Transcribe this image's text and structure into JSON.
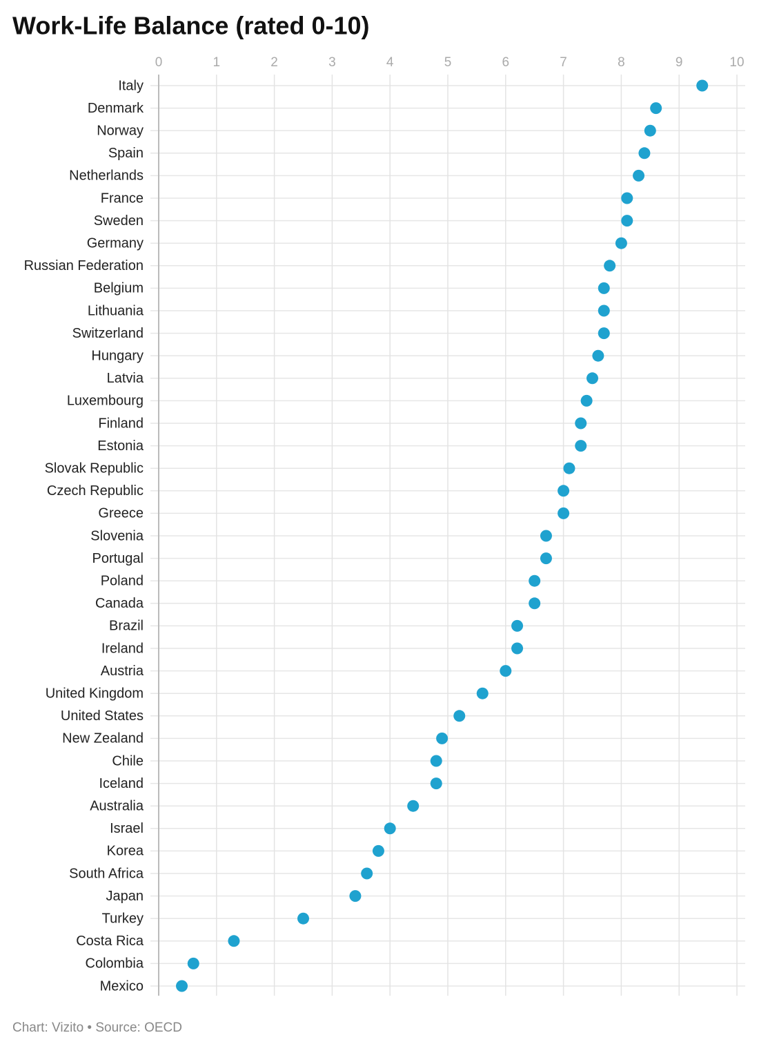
{
  "chart_data": {
    "type": "dot",
    "title": "Work-Life Balance (rated 0-10)",
    "source": "Chart: Vizito • Source: OECD",
    "categories": [
      "Italy",
      "Denmark",
      "Norway",
      "Spain",
      "Netherlands",
      "France",
      "Sweden",
      "Germany",
      "Russian Federation",
      "Belgium",
      "Lithuania",
      "Switzerland",
      "Hungary",
      "Latvia",
      "Luxembourg",
      "Finland",
      "Estonia",
      "Slovak Republic",
      "Czech Republic",
      "Greece",
      "Slovenia",
      "Portugal",
      "Poland",
      "Canada",
      "Brazil",
      "Ireland",
      "Austria",
      "United Kingdom",
      "United States",
      "New Zealand",
      "Chile",
      "Iceland",
      "Australia",
      "Israel",
      "Korea",
      "South Africa",
      "Japan",
      "Turkey",
      "Costa Rica",
      "Colombia",
      "Mexico"
    ],
    "values": [
      9.4,
      8.6,
      8.5,
      8.4,
      8.3,
      8.1,
      8.1,
      8.0,
      7.8,
      7.7,
      7.7,
      7.7,
      7.6,
      7.5,
      7.4,
      7.3,
      7.3,
      7.1,
      7.0,
      7.0,
      6.7,
      6.7,
      6.5,
      6.5,
      6.2,
      6.2,
      6.0,
      5.6,
      5.2,
      4.9,
      4.8,
      4.8,
      4.4,
      4.0,
      3.8,
      3.6,
      3.4,
      2.5,
      1.3,
      0.6,
      0.4
    ],
    "color": "#1fa2cf",
    "xlim": [
      0,
      10
    ],
    "xticks": [
      0,
      1,
      2,
      3,
      4,
      5,
      6,
      7,
      8,
      9,
      10
    ],
    "grid": true
  }
}
